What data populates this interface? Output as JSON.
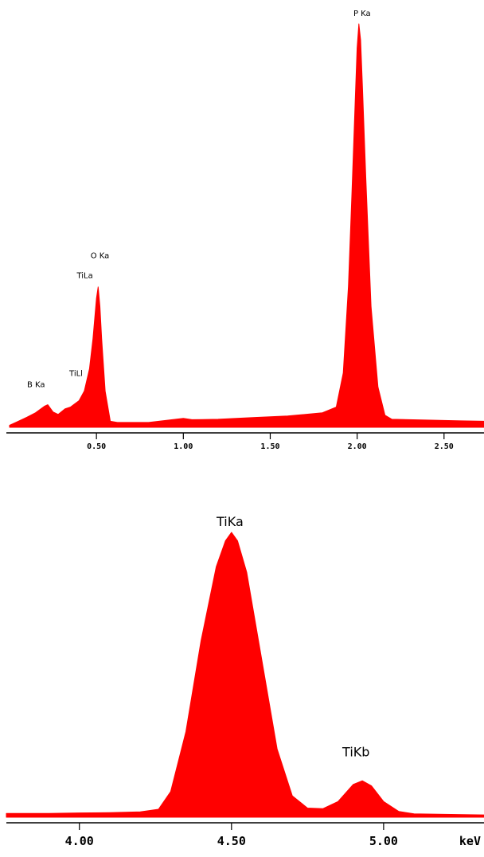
{
  "colors": {
    "spectrum": "#ff0000",
    "axis": "#000000",
    "background": "#ffffff"
  },
  "chart_data": [
    {
      "type": "area",
      "title": "",
      "xlabel": "",
      "ylabel": "",
      "xlim": [
        0.0,
        2.73
      ],
      "ylim": [
        0,
        100
      ],
      "grid": false,
      "ticks": [
        "0.50",
        "1.00",
        "1.50",
        "2.00",
        "2.50"
      ],
      "tick_values": [
        0.5,
        1.0,
        1.5,
        2.0,
        2.5
      ],
      "peak_labels": [
        {
          "text": "B Ka",
          "x": 0.18,
          "y": 7.2
        },
        {
          "text": "TiLl",
          "x": 0.41,
          "y": 10
        },
        {
          "text": "TiLa",
          "x": 0.47,
          "y": 35.6
        },
        {
          "text": "O Ka",
          "x": 0.52,
          "y": 38
        },
        {
          "text": "P Ka",
          "x": 2.01,
          "y": 100
        }
      ],
      "series": [
        {
          "x": [
            0.0,
            0.05,
            0.1,
            0.15,
            0.2,
            0.22,
            0.25,
            0.28,
            0.32,
            0.35,
            0.4,
            0.43,
            0.46,
            0.48,
            0.5,
            0.51,
            0.52,
            0.53,
            0.55,
            0.58,
            0.62,
            0.8,
            1.0,
            1.05,
            1.2,
            1.4,
            1.5,
            1.6,
            1.8,
            1.88,
            1.92,
            1.95,
            1.97,
            1.99,
            2.0,
            2.01,
            2.02,
            2.03,
            2.05,
            2.08,
            2.12,
            2.16,
            2.2,
            2.4,
            2.6,
            2.73
          ],
          "y": [
            0.5,
            1.5,
            2.5,
            3.6,
            5.2,
            5.6,
            3.8,
            3.2,
            4.6,
            5.0,
            6.6,
            9.0,
            14.5,
            22.0,
            32.0,
            34.8,
            30.0,
            22.0,
            9.0,
            1.5,
            1.2,
            1.2,
            2.2,
            1.9,
            2.0,
            2.4,
            2.6,
            2.8,
            3.6,
            5.0,
            13.5,
            35.0,
            58.0,
            82.0,
            94.0,
            100.0,
            96.0,
            85.0,
            62.0,
            30.0,
            10.0,
            3.0,
            2.0,
            1.8,
            1.6,
            1.5
          ]
        }
      ]
    },
    {
      "type": "area",
      "title": "",
      "xlabel": "keV",
      "ylabel": "",
      "xlim": [
        3.76,
        5.33
      ],
      "ylim": [
        0,
        100
      ],
      "grid": false,
      "ticks": [
        "4.00",
        "4.50",
        "5.00"
      ],
      "tick_values": [
        4.0,
        4.5,
        5.0
      ],
      "peak_labels": [
        {
          "text": "TiKa",
          "x": 4.495,
          "y": 100
        },
        {
          "text": "TiKb",
          "x": 4.925,
          "y": 18.6
        }
      ],
      "series": [
        {
          "x": [
            3.76,
            3.9,
            4.0,
            4.1,
            4.2,
            4.26,
            4.3,
            4.35,
            4.4,
            4.45,
            4.48,
            4.5,
            4.52,
            4.55,
            4.6,
            4.65,
            4.7,
            4.75,
            4.8,
            4.85,
            4.9,
            4.93,
            4.96,
            5.0,
            5.05,
            5.1,
            5.2,
            5.33
          ],
          "y": [
            1.3,
            1.3,
            1.5,
            1.6,
            1.9,
            2.8,
            9.0,
            30.0,
            62.0,
            88.0,
            97.0,
            100.0,
            97.0,
            86.0,
            55.0,
            24.0,
            7.5,
            3.2,
            3.0,
            5.5,
            11.5,
            12.8,
            11.0,
            5.5,
            2.0,
            1.2,
            1.0,
            0.8
          ]
        }
      ]
    }
  ]
}
